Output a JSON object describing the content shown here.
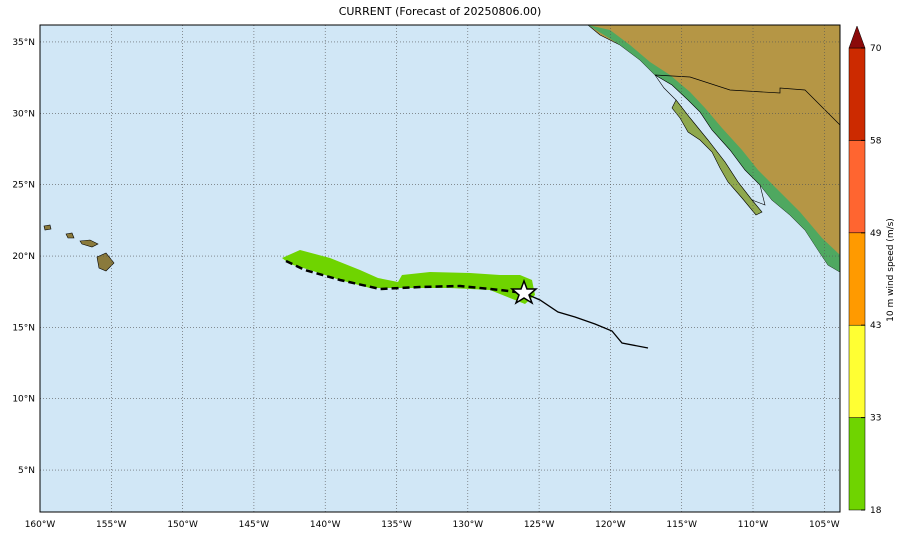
{
  "map": {
    "title": "CURRENT (Forecast of 20250806.00)",
    "xlim": [
      -160,
      -103.9
    ],
    "ylim": [
      2.06,
      36.19
    ],
    "xticks": [
      {
        "value": -160,
        "label": "160°W"
      },
      {
        "value": -155,
        "label": "155°W"
      },
      {
        "value": -150,
        "label": "150°W"
      },
      {
        "value": -145,
        "label": "145°W"
      },
      {
        "value": -140,
        "label": "140°W"
      },
      {
        "value": -135,
        "label": "135°W"
      },
      {
        "value": -130,
        "label": "130°W"
      },
      {
        "value": -125,
        "label": "125°W"
      },
      {
        "value": -120,
        "label": "120°W"
      },
      {
        "value": -115,
        "label": "115°W"
      },
      {
        "value": -110,
        "label": "110°W"
      },
      {
        "value": -105,
        "label": "105°W"
      }
    ],
    "yticks": [
      {
        "value": 5,
        "label": "5°N"
      },
      {
        "value": 10,
        "label": "10°N"
      },
      {
        "value": 15,
        "label": "15°N"
      },
      {
        "value": 20,
        "label": "20°N"
      },
      {
        "value": 25,
        "label": "25°N"
      },
      {
        "value": 30,
        "label": "30°N"
      },
      {
        "value": 35,
        "label": "35°N"
      }
    ],
    "grid": true,
    "colorbar": {
      "label": "10 m wind speed (m/s)",
      "ticks": [
        18,
        33,
        43,
        49,
        58,
        70
      ],
      "colors": [
        "#6fd400",
        "#ffff33",
        "#ff9a00",
        "#ff6530",
        "#cc2a00"
      ],
      "extend_color": "#8b0a0a"
    }
  }
}
